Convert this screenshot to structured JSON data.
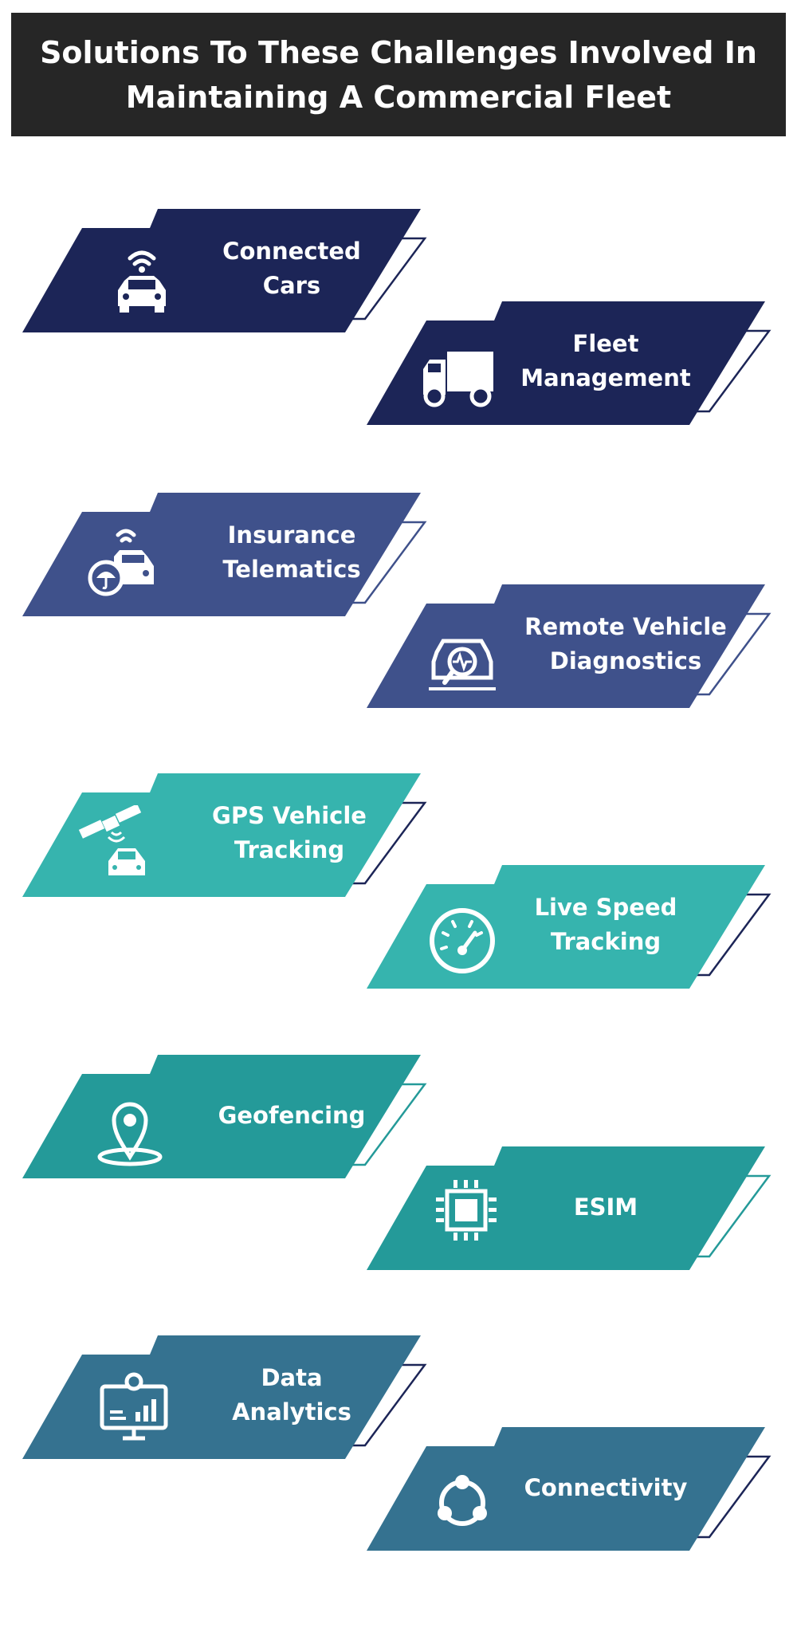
{
  "header": {
    "title_line1": "Solutions To These Challenges Involved In",
    "title_line2": "Maintaining A Commercial Fleet"
  },
  "colors": {
    "header_bg": "#262626",
    "navy": "#1c2557",
    "indigo": "#3f518b",
    "teal_light": "#36b4ae",
    "teal": "#249a99",
    "steel": "#357290",
    "text": "#ffffff"
  },
  "cards": [
    {
      "line1": "Connected",
      "line2": "Cars",
      "icon": "connected-car-icon",
      "color": "#1c2557"
    },
    {
      "line1": "Fleet",
      "line2": "Management",
      "icon": "truck-icon",
      "color": "#1c2557"
    },
    {
      "line1": "Insurance",
      "line2": "Telematics",
      "icon": "insured-car-icon",
      "color": "#3f518b"
    },
    {
      "line1": "Remote Vehicle",
      "line2": "Diagnostics",
      "icon": "car-diagnostics-icon",
      "color": "#3f518b"
    },
    {
      "line1": "GPS Vehicle",
      "line2": "Tracking",
      "icon": "satellite-car-icon",
      "color": "#36b4ae"
    },
    {
      "line1": "Live Speed",
      "line2": "Tracking",
      "icon": "speedometer-icon",
      "color": "#36b4ae"
    },
    {
      "line1": "Geofencing",
      "line2": "",
      "icon": "location-pin-icon",
      "color": "#249a99"
    },
    {
      "line1": "ESIM",
      "line2": "",
      "icon": "chip-icon",
      "color": "#249a99"
    },
    {
      "line1": "Data",
      "line2": "Analytics",
      "icon": "analytics-monitor-icon",
      "color": "#357290"
    },
    {
      "line1": "Connectivity",
      "line2": "",
      "icon": "connectivity-icon",
      "color": "#357290"
    }
  ]
}
